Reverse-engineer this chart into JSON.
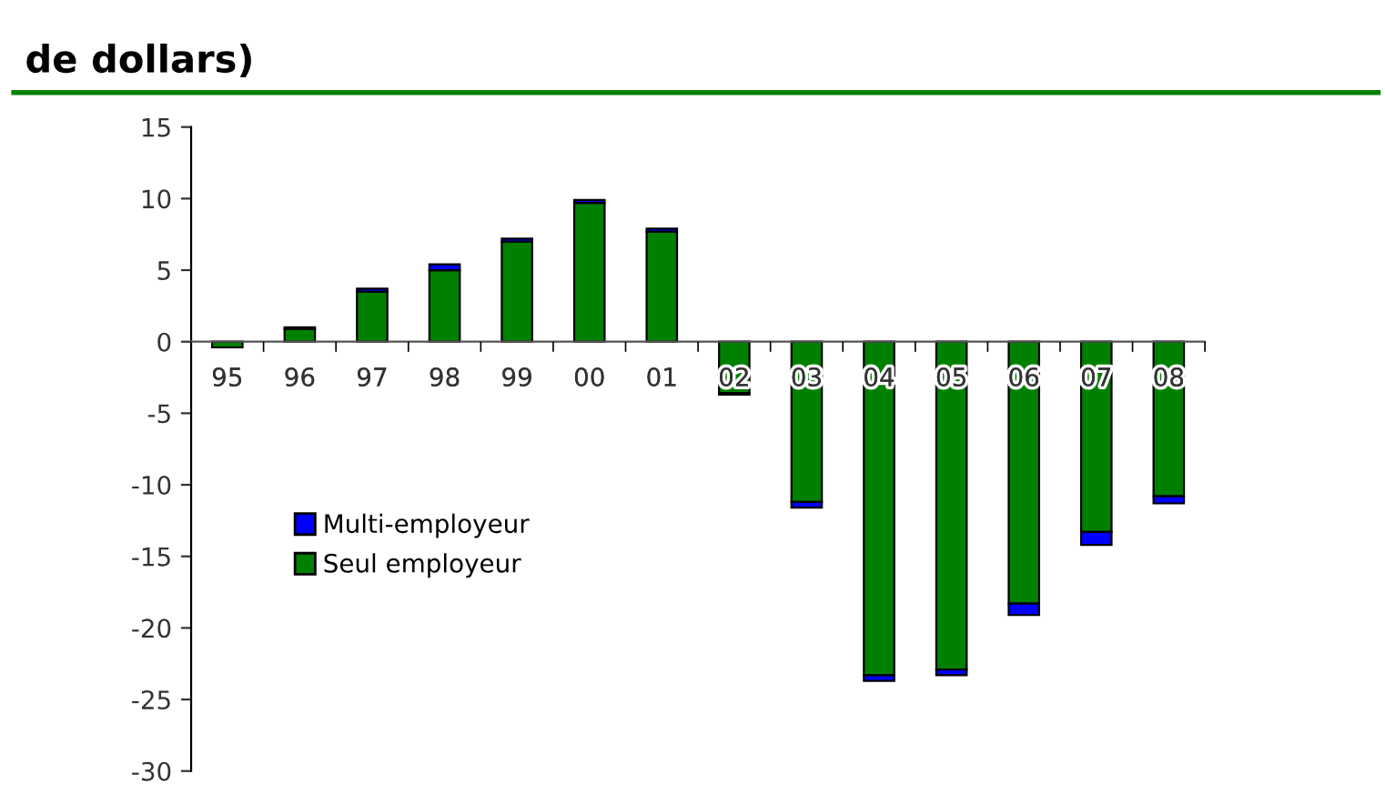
{
  "chart_data": {
    "type": "bar",
    "title": "de dollars)",
    "categories": [
      "95",
      "96",
      "97",
      "98",
      "99",
      "00",
      "01",
      "02",
      "03",
      "04",
      "05",
      "06",
      "07",
      "08"
    ],
    "stacked": true,
    "series": [
      {
        "name": "Seul employeur",
        "color": "#008000",
        "values": [
          -0.4,
          0.9,
          3.5,
          5.0,
          7.0,
          9.7,
          7.7,
          -3.6,
          -11.2,
          -23.3,
          -22.9,
          -18.3,
          -13.3,
          -10.8
        ]
      },
      {
        "name": "Multi-employeur",
        "color": "#0000ff",
        "values": [
          null,
          0.1,
          0.2,
          0.4,
          0.2,
          0.2,
          0.2,
          -0.1,
          -0.4,
          -0.4,
          -0.4,
          -0.8,
          -0.9,
          -0.5
        ]
      }
    ],
    "ylim": [
      -30,
      15
    ],
    "yticks": [
      -30,
      -25,
      -20,
      -15,
      -10,
      -5,
      0,
      5,
      10,
      15
    ],
    "grid": false,
    "legend": "left"
  }
}
